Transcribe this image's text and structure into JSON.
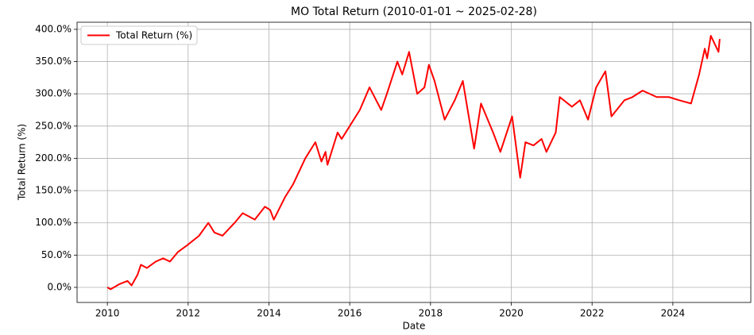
{
  "chart_data": {
    "type": "line",
    "title": "MO Total Return (2010-01-01 ~ 2025-02-28)",
    "x_label": "Date",
    "y_label": "Total Return (%)",
    "x": [
      2010.0,
      2010.08,
      2010.3,
      2010.5,
      2010.6,
      2010.75,
      2010.83,
      2010.98,
      2011.2,
      2011.38,
      2011.55,
      2011.75,
      2011.97,
      2012.27,
      2012.5,
      2012.65,
      2012.85,
      2013.15,
      2013.35,
      2013.65,
      2013.9,
      2014.03,
      2014.12,
      2014.4,
      2014.6,
      2014.9,
      2015.15,
      2015.3,
      2015.4,
      2015.45,
      2015.7,
      2015.8,
      2016.0,
      2016.25,
      2016.49,
      2016.78,
      2016.92,
      2017.18,
      2017.3,
      2017.47,
      2017.67,
      2017.85,
      2017.96,
      2018.1,
      2018.35,
      2018.6,
      2018.8,
      2019.08,
      2019.25,
      2019.55,
      2019.73,
      2020.02,
      2020.22,
      2020.35,
      2020.55,
      2020.75,
      2020.87,
      2021.1,
      2021.2,
      2021.5,
      2021.7,
      2021.9,
      2022.1,
      2022.33,
      2022.48,
      2022.8,
      2023.0,
      2023.25,
      2023.6,
      2023.9,
      2024.16,
      2024.45,
      2024.65,
      2024.79,
      2024.85,
      2024.94,
      2025.13,
      2025.16
    ],
    "series": [
      {
        "name": "Total Return (%)",
        "color": "#ff0000",
        "values": [
          0,
          -3,
          5,
          10,
          3,
          20,
          35,
          30,
          40,
          45,
          40,
          55,
          65,
          80,
          100,
          85,
          80,
          100,
          115,
          105,
          125,
          120,
          105,
          140,
          160,
          200,
          225,
          195,
          210,
          190,
          240,
          230,
          250,
          275,
          310,
          275,
          300,
          350,
          330,
          365,
          300,
          310,
          345,
          320,
          260,
          290,
          320,
          215,
          285,
          240,
          210,
          265,
          170,
          225,
          220,
          230,
          210,
          240,
          295,
          280,
          290,
          260,
          310,
          335,
          265,
          290,
          295,
          305,
          295,
          295,
          290,
          285,
          330,
          370,
          355,
          390,
          365,
          385
        ]
      }
    ],
    "xlim": [
      2009.25,
      2025.93
    ],
    "xticks": [
      2010,
      2012,
      2014,
      2016,
      2018,
      2020,
      2022,
      2024
    ],
    "ylim": [
      -23.4,
      411
    ],
    "yticks": [
      {
        "value": 0,
        "label": "0.0%"
      },
      {
        "value": 50,
        "label": "50.0%"
      },
      {
        "value": 100,
        "label": "100.0%"
      },
      {
        "value": 150,
        "label": "150.0%"
      },
      {
        "value": 200,
        "label": "200.0%"
      },
      {
        "value": 250,
        "label": "250.0%"
      },
      {
        "value": 300,
        "label": "300.0%"
      },
      {
        "value": 350,
        "label": "350.0%"
      },
      {
        "value": 400,
        "label": "400.0%"
      }
    ],
    "grid": true,
    "legend": "upper left"
  }
}
